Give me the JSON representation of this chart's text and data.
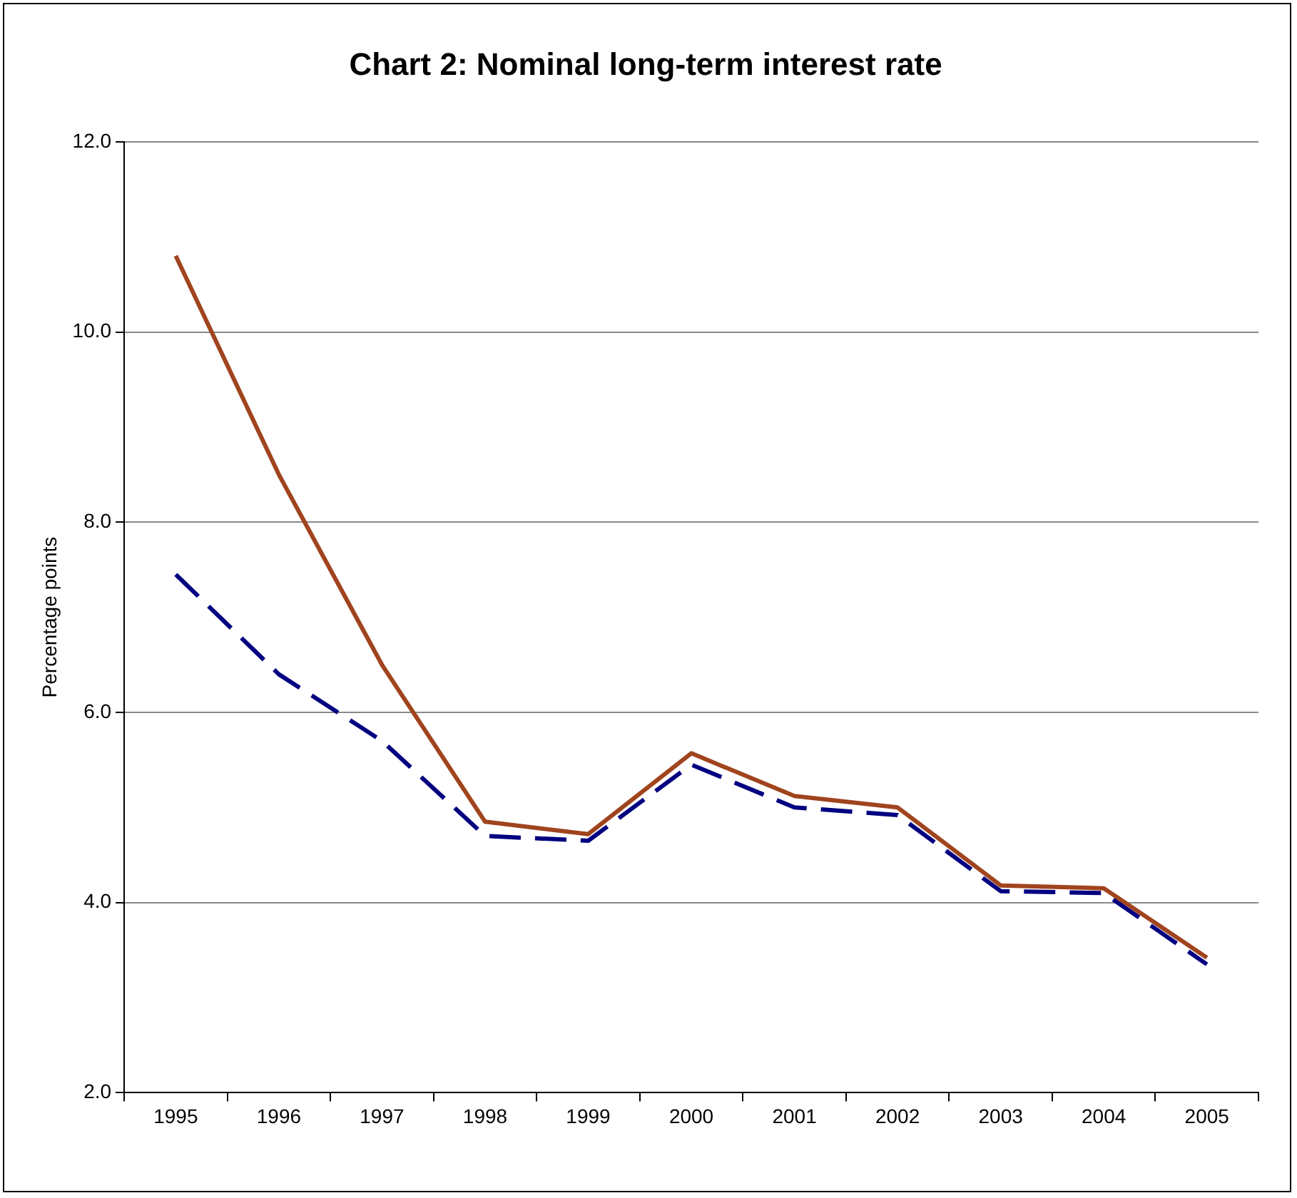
{
  "chart_data": {
    "type": "line",
    "title": "Chart 2: Nominal long-term interest rate",
    "ylabel": "Percentage points",
    "categories": [
      "1995",
      "1996",
      "1997",
      "1998",
      "1999",
      "2000",
      "2001",
      "2002",
      "2003",
      "2004",
      "2005"
    ],
    "series": [
      {
        "color": "#a0441e",
        "line_style": "solid",
        "values": [
          10.8,
          8.5,
          6.5,
          4.85,
          4.72,
          5.57,
          5.12,
          5.0,
          4.18,
          4.15,
          3.42
        ]
      },
      {
        "color": "#000080",
        "line_style": "dashed",
        "values": [
          7.45,
          6.4,
          5.7,
          4.7,
          4.65,
          5.45,
          5.0,
          4.92,
          4.12,
          4.1,
          3.35
        ]
      }
    ],
    "ylim": [
      2,
      12
    ],
    "yticks": [
      {
        "value": 2,
        "label": "2.0"
      },
      {
        "value": 4,
        "label": "4.0"
      },
      {
        "value": 6,
        "label": "6.0"
      },
      {
        "value": 8,
        "label": "8.0"
      },
      {
        "value": 10,
        "label": "10.0"
      },
      {
        "value": 12,
        "label": "12.0"
      }
    ],
    "grid": "y",
    "legend": false,
    "marker": "none"
  }
}
